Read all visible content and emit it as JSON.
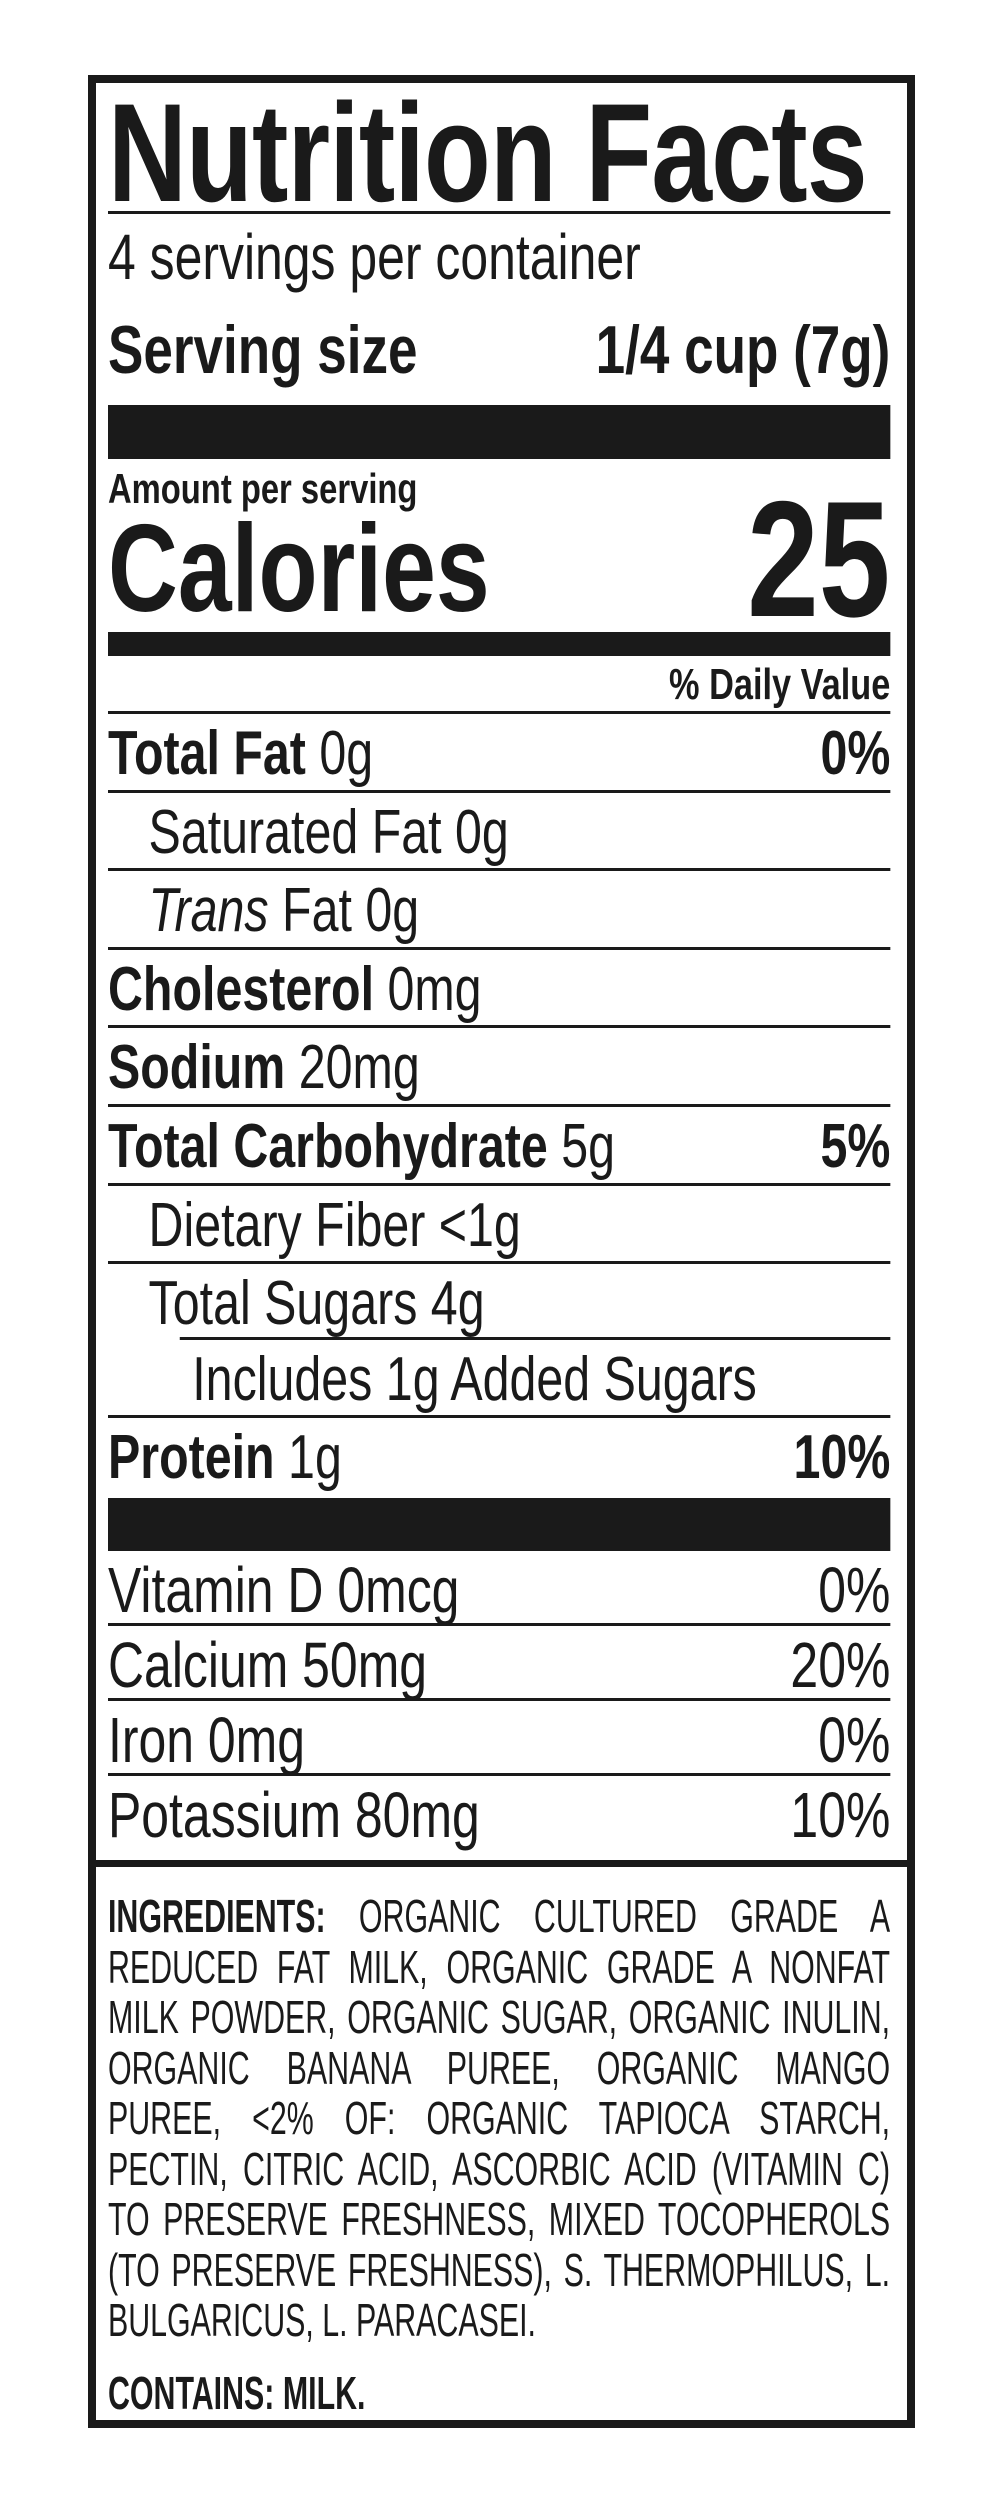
{
  "title": "Nutrition Facts",
  "servings_per_container": "4 servings per container",
  "serving_size": {
    "label": "Serving size",
    "value": "1/4 cup (7g)"
  },
  "amount_per_serving": "Amount per serving",
  "calories": {
    "label": "Calories",
    "value": "25"
  },
  "daily_value_header": "% Daily Value",
  "nutrients": [
    {
      "name": "Total Fat",
      "amount": "0g",
      "dv": "0%"
    },
    {
      "name": "Saturated Fat 0g"
    },
    {
      "name_italic": "Trans",
      "name": "Fat 0g"
    },
    {
      "name": "Cholesterol",
      "amount": "0mg"
    },
    {
      "name": "Sodium",
      "amount": "20mg"
    },
    {
      "name": "Total Carbohydrate",
      "amount": "5g",
      "dv": "5%"
    },
    {
      "name": "Dietary Fiber <1g"
    },
    {
      "name": "Total Sugars 4g"
    },
    {
      "name": "Includes 1g Added Sugars"
    },
    {
      "name": "Protein",
      "amount": "1g",
      "dv": "10%"
    }
  ],
  "vitamins": [
    {
      "name": "Vitamin D 0mcg",
      "dv": "0%"
    },
    {
      "name": "Calcium 50mg",
      "dv": "20%"
    },
    {
      "name": "Iron 0mg",
      "dv": "0%"
    },
    {
      "name": "Potassium 80mg",
      "dv": "10%"
    }
  ],
  "ingredients": {
    "label": "INGREDIENTS:",
    "text": "ORGANIC CULTURED GRADE A REDUCED FAT MILK, ORGANIC GRADE A NONFAT MILK POWDER, ORGANIC SUGAR, ORGANIC INULIN, ORGANIC BANANA PUREE, ORGANIC MANGO PUREE, <2% OF: ORGANIC TAPIOCA STARCH, PECTIN, CITRIC ACID, ASCORBIC ACID (VITAMIN C) TO PRESERVE FRESHNESS, MIXED TOCOPHEROLS (TO PRESERVE FRESHNESS), S. THERMOPHILUS, L. BULGARICUS, L. PARACASEI."
  },
  "contains": {
    "label": "CONTAINS:",
    "text": "MILK."
  }
}
